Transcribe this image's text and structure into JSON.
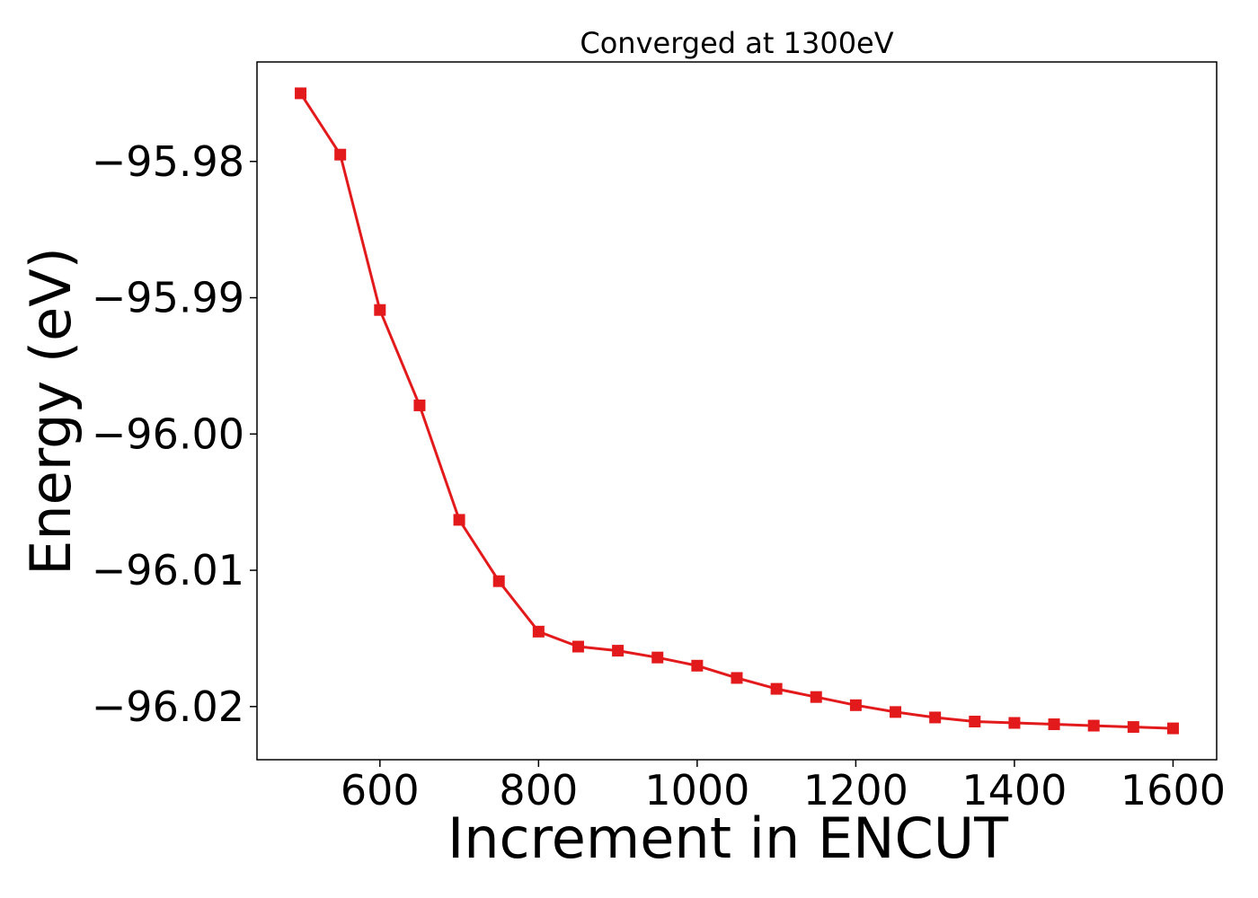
{
  "chart_data": {
    "type": "line",
    "title": "Converged at 1300eV",
    "xlabel": "Increment in ENCUT",
    "ylabel": "Energy (eV)",
    "xlim": [
      445,
      1655
    ],
    "ylim": [
      -96.0239,
      -95.9727
    ],
    "x_ticks": [
      600,
      800,
      1000,
      1200,
      1400,
      1600
    ],
    "x_tick_labels": [
      "600",
      "800",
      "1000",
      "1200",
      "1400",
      "1600"
    ],
    "y_ticks": [
      -95.98,
      -95.99,
      -96.0,
      -96.01,
      -96.02
    ],
    "y_tick_labels": [
      "−95.98",
      "−95.99",
      "−96.00",
      "−96.01",
      "−96.02"
    ],
    "grid": false,
    "legend": "none",
    "series": [
      {
        "color": "#e31a1c",
        "marker": "square",
        "x": [
          500,
          550,
          600,
          650,
          700,
          750,
          800,
          850,
          900,
          950,
          1000,
          1050,
          1100,
          1150,
          1200,
          1250,
          1300,
          1350,
          1400,
          1450,
          1500,
          1550,
          1600
        ],
        "y": [
          -95.975,
          -95.9795,
          -95.9909,
          -95.9979,
          -96.0063,
          -96.0108,
          -96.0145,
          -96.0156,
          -96.0159,
          -96.0164,
          -96.017,
          -96.0179,
          -96.0187,
          -96.0193,
          -96.0199,
          -96.0204,
          -96.0208,
          -96.0211,
          -96.0212,
          -96.0213,
          -96.0214,
          -96.0215,
          -96.0216
        ]
      }
    ]
  }
}
